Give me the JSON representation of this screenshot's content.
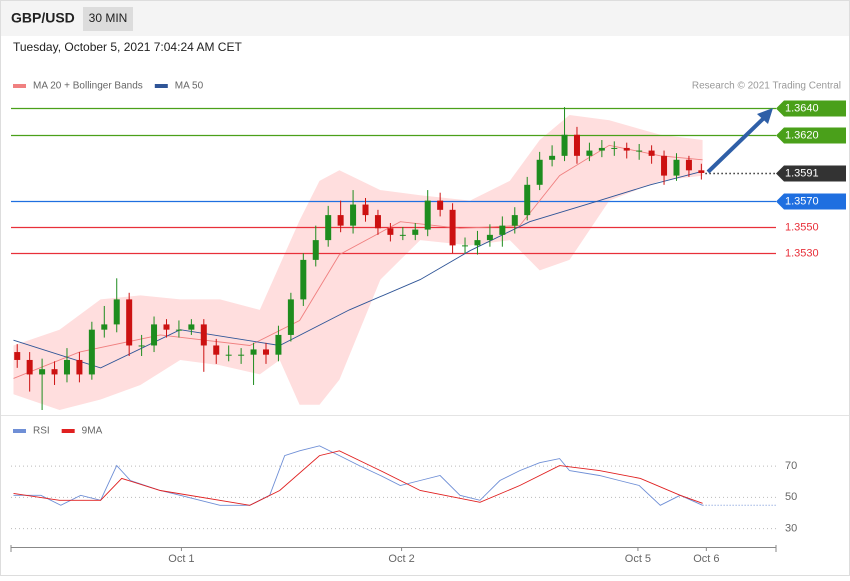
{
  "header": {
    "symbol": "GBP/USD",
    "timeframe": "30 MIN",
    "timestamp": "Tuesday, October 5, 2021 7:04:24 AM CET"
  },
  "chart_data": [
    {
      "type": "candlestick",
      "credit": "Research © 2021 Trading Central",
      "xlim": [
        -0.5,
        61
      ],
      "ylim": [
        1.3411,
        1.3695
      ],
      "xticks": [
        {
          "value": 13.2,
          "label": "Oct 1"
        },
        {
          "value": 30.9,
          "label": "Oct 2"
        },
        {
          "value": 49.9,
          "label": "Oct 5"
        },
        {
          "value": 55.4,
          "label": "Oct 6"
        }
      ],
      "up_color": "#1e8c1e",
      "down_color": "#cc1111",
      "x": [
        0,
        1,
        2,
        3,
        4,
        5,
        6,
        7,
        8,
        9,
        10,
        11,
        12,
        13,
        14,
        15,
        16,
        17,
        18,
        19,
        20,
        21,
        22,
        23,
        24,
        25,
        26,
        27,
        28,
        29,
        30,
        31,
        32,
        33,
        34,
        35,
        36,
        37,
        38,
        39,
        40,
        41,
        42,
        43,
        44,
        45,
        46,
        47,
        48,
        49,
        50,
        51,
        52,
        53,
        54,
        55
      ],
      "open": [
        1.3455,
        1.3449,
        1.3438,
        1.3442,
        1.3438,
        1.3449,
        1.3438,
        1.3472,
        1.3476,
        1.3495,
        1.346,
        1.346,
        1.3476,
        1.3472,
        1.3472,
        1.3476,
        1.346,
        1.3453,
        1.3453,
        1.3453,
        1.3457,
        1.3453,
        1.3468,
        1.3495,
        1.3525,
        1.354,
        1.3559,
        1.3551,
        1.3567,
        1.3559,
        1.3549,
        1.3544,
        1.3544,
        1.3548,
        1.357,
        1.3563,
        1.3536,
        1.3536,
        1.354,
        1.3544,
        1.3551,
        1.3559,
        1.3582,
        1.3601,
        1.3604,
        1.362,
        1.3604,
        1.3608,
        1.361,
        1.361,
        1.3608,
        1.3608,
        1.3604,
        1.3589,
        1.3601,
        1.3593
      ],
      "high": [
        1.3461,
        1.3455,
        1.345,
        1.3448,
        1.3458,
        1.3455,
        1.3478,
        1.349,
        1.3511,
        1.35,
        1.3468,
        1.3482,
        1.348,
        1.3479,
        1.348,
        1.348,
        1.3465,
        1.346,
        1.3458,
        1.3462,
        1.3462,
        1.3475,
        1.35,
        1.353,
        1.3551,
        1.3566,
        1.357,
        1.3578,
        1.3572,
        1.3563,
        1.3553,
        1.355,
        1.3553,
        1.3578,
        1.3576,
        1.3568,
        1.3542,
        1.3547,
        1.3552,
        1.3558,
        1.3565,
        1.3588,
        1.3607,
        1.3612,
        1.3641,
        1.3626,
        1.3614,
        1.3616,
        1.3615,
        1.3614,
        1.3613,
        1.3612,
        1.3608,
        1.3606,
        1.3604,
        1.3598
      ],
      "low": [
        1.3443,
        1.3425,
        1.3411,
        1.343,
        1.3432,
        1.3432,
        1.3434,
        1.3466,
        1.347,
        1.3452,
        1.3452,
        1.3455,
        1.3466,
        1.3466,
        1.3468,
        1.344,
        1.3446,
        1.3448,
        1.3446,
        1.343,
        1.3446,
        1.3448,
        1.3463,
        1.349,
        1.352,
        1.3535,
        1.3546,
        1.3545,
        1.3554,
        1.3544,
        1.3539,
        1.354,
        1.354,
        1.3543,
        1.3558,
        1.353,
        1.353,
        1.3529,
        1.3535,
        1.3535,
        1.3545,
        1.3555,
        1.3578,
        1.3596,
        1.36,
        1.3598,
        1.36,
        1.3603,
        1.3604,
        1.3602,
        1.3601,
        1.3598,
        1.3582,
        1.3585,
        1.3588,
        1.3586
      ],
      "close": [
        1.3449,
        1.3438,
        1.3442,
        1.3438,
        1.3449,
        1.3438,
        1.3472,
        1.3476,
        1.3495,
        1.346,
        1.346,
        1.3476,
        1.3472,
        1.3472,
        1.3476,
        1.346,
        1.3453,
        1.3453,
        1.3453,
        1.3457,
        1.3453,
        1.3468,
        1.3495,
        1.3525,
        1.354,
        1.3559,
        1.3551,
        1.3567,
        1.3559,
        1.3549,
        1.3544,
        1.3544,
        1.3548,
        1.357,
        1.3563,
        1.3536,
        1.3536,
        1.354,
        1.3544,
        1.3551,
        1.3559,
        1.3582,
        1.3601,
        1.3604,
        1.362,
        1.3604,
        1.3608,
        1.361,
        1.361,
        1.3608,
        1.3608,
        1.3604,
        1.3589,
        1.3601,
        1.3593,
        1.3591
      ],
      "bands": {
        "color": "#ffdede",
        "x": [
          -0.3,
          3.4,
          6.7,
          9.9,
          13.1,
          16.3,
          19.5,
          21.1,
          22.7,
          24.3,
          25.9,
          29.2,
          32.4,
          36.4,
          39.6,
          42.0,
          44.4,
          47.6,
          51.7,
          55.1
        ],
        "upper": [
          1.346,
          1.3472,
          1.3495,
          1.3498,
          1.3495,
          1.3495,
          1.3487,
          1.3521,
          1.3555,
          1.3585,
          1.3593,
          1.3578,
          1.3574,
          1.357,
          1.3585,
          1.3616,
          1.3635,
          1.3631,
          1.362,
          1.3616
        ],
        "lower": [
          1.3423,
          1.3411,
          1.3419,
          1.343,
          1.3449,
          1.3445,
          1.3438,
          1.3449,
          1.3415,
          1.3415,
          1.3434,
          1.351,
          1.354,
          1.3536,
          1.354,
          1.3517,
          1.3525,
          1.357,
          1.3585,
          1.3589
        ]
      },
      "series": [
        {
          "name": "MA 20 + Bollinger Bands",
          "color": "#f08080",
          "x": [
            -0.3,
            5.0,
            11.5,
            18.7,
            22.7,
            25.9,
            30.8,
            35.6,
            40.4,
            43.6,
            47.6,
            51.7,
            55.1
          ],
          "values": [
            1.3435,
            1.3455,
            1.3468,
            1.346,
            1.3479,
            1.3529,
            1.3554,
            1.3549,
            1.3551,
            1.3589,
            1.3612,
            1.3604,
            1.3601
          ]
        },
        {
          "name": "MA 50",
          "color": "#2f5597",
          "x": [
            -0.3,
            6.7,
            13.1,
            21.1,
            26.7,
            32.4,
            36.4,
            41.2,
            46.8,
            50.9,
            55.0
          ],
          "values": [
            1.3464,
            1.3443,
            1.3472,
            1.346,
            1.3487,
            1.351,
            1.3532,
            1.3554,
            1.357,
            1.3582,
            1.3592
          ]
        }
      ],
      "levels": [
        {
          "value": 1.364,
          "label": "1.3640",
          "color": "#4aa01a",
          "boxed": true,
          "dotted": false
        },
        {
          "value": 1.362,
          "label": "1.3620",
          "color": "#4aa01a",
          "boxed": true,
          "dotted": false
        },
        {
          "value": 1.3591,
          "label": "1.3591",
          "color": "#333333",
          "boxed": true,
          "dotted": true
        },
        {
          "value": 1.357,
          "label": "1.3570",
          "color": "#1f6fe0",
          "boxed": true,
          "dotted": false
        },
        {
          "value": 1.355,
          "label": "1.3550",
          "color": "#e8303a",
          "boxed": false,
          "dotted": false
        },
        {
          "value": 1.353,
          "label": "1.3530",
          "color": "#e8303a",
          "boxed": false,
          "dotted": false
        }
      ]
    },
    {
      "type": "line",
      "xlim": [
        -0.5,
        61
      ],
      "ylim": [
        23,
        97
      ],
      "yticks": [
        70,
        50,
        30
      ],
      "grid": true,
      "series": [
        {
          "name": "RSI",
          "color": "#6f8fd6",
          "x": [
            -0.3,
            1.9,
            3.5,
            5.1,
            6.7,
            8.0,
            9.1,
            11.5,
            13.1,
            14.7,
            16.3,
            18.7,
            20.3,
            21.5,
            22.7,
            24.3,
            25.9,
            27.5,
            29.2,
            30.8,
            32.4,
            34.0,
            35.6,
            37.2,
            38.8,
            40.4,
            42.0,
            43.6,
            44.4,
            46.8,
            48.4,
            50.0,
            51.7,
            53.3,
            55.1
          ],
          "values": [
            51.3,
            51.3,
            44.9,
            51.3,
            48.1,
            70.3,
            60.8,
            54.4,
            51.3,
            48.1,
            44.9,
            44.9,
            51.3,
            76.7,
            79.8,
            83.0,
            76.7,
            70.3,
            64.0,
            57.6,
            60.8,
            64.0,
            51.3,
            48.1,
            60.8,
            67.1,
            72.2,
            74.8,
            67.1,
            64.0,
            60.8,
            57.6,
            44.9,
            51.3,
            44.9
          ]
        },
        {
          "name": "9MA",
          "color": "#e02020",
          "x": [
            -0.3,
            3.4,
            6.7,
            8.4,
            11.5,
            18.7,
            21.1,
            24.3,
            25.9,
            29.2,
            32.4,
            37.2,
            40.4,
            43.6,
            46.8,
            50.1,
            53.3,
            55.1
          ],
          "values": [
            52.5,
            48.1,
            48.1,
            62.1,
            54.4,
            44.9,
            54.4,
            76.7,
            79.8,
            67.1,
            54.4,
            46.8,
            57.6,
            70.3,
            67.1,
            62.1,
            51.3,
            46.2
          ]
        }
      ]
    }
  ]
}
